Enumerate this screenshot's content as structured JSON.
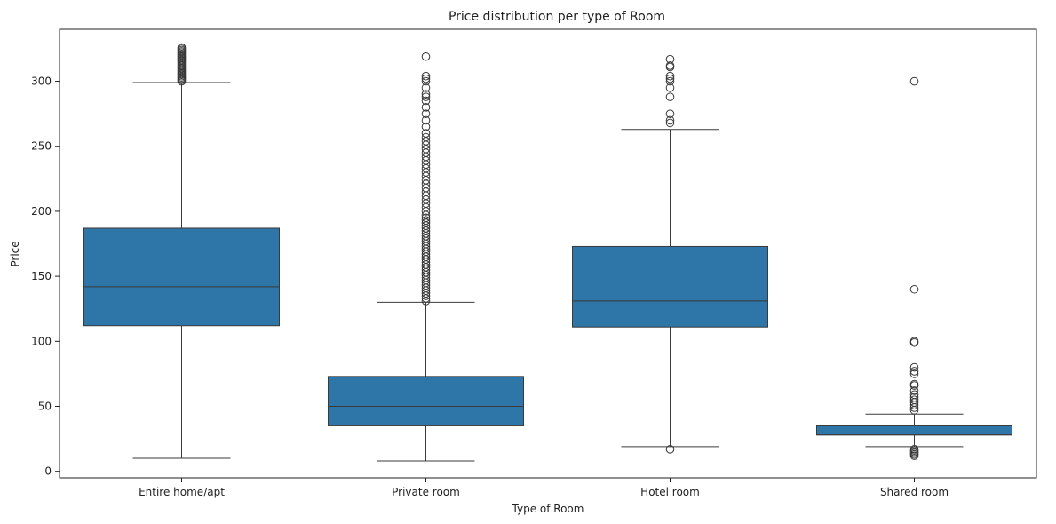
{
  "chart_data": {
    "type": "box",
    "title": "Price distribution per type of Room",
    "xlabel": "Type of Room",
    "ylabel": "Price",
    "ylim": [
      -5,
      340
    ],
    "yticks": [
      0,
      50,
      100,
      150,
      200,
      250,
      300
    ],
    "box_color": "#2e75a8",
    "line_color": "#3a3a3a",
    "grid": false,
    "categories": [
      "Entire home/apt",
      "Private room",
      "Hotel room",
      "Shared room"
    ],
    "boxes": [
      {
        "category": "Entire home/apt",
        "whisker_low": 10,
        "q1": 112,
        "median": 142,
        "q3": 187,
        "whisker_high": 299,
        "outliers": [
          300,
          301,
          302,
          303,
          304,
          305,
          306,
          307,
          308,
          309,
          310,
          311,
          312,
          313,
          314,
          315,
          316,
          317,
          318,
          319,
          320,
          321,
          322,
          323,
          324,
          325,
          326
        ]
      },
      {
        "category": "Private room",
        "whisker_low": 8,
        "q1": 35,
        "median": 50,
        "q3": 73,
        "whisker_high": 130,
        "outliers": [
          131,
          133,
          135,
          137,
          139,
          141,
          143,
          145,
          147,
          149,
          151,
          153,
          155,
          157,
          159,
          161,
          163,
          165,
          167,
          169,
          171,
          173,
          175,
          177,
          179,
          181,
          183,
          185,
          187,
          189,
          191,
          193,
          195,
          197,
          200,
          203,
          206,
          209,
          212,
          215,
          218,
          221,
          224,
          227,
          230,
          233,
          236,
          239,
          242,
          245,
          248,
          251,
          254,
          257,
          260,
          265,
          270,
          275,
          280,
          285,
          288,
          290,
          295,
          300,
          302,
          304,
          319
        ]
      },
      {
        "category": "Hotel room",
        "whisker_low": 19,
        "q1": 111,
        "median": 131,
        "q3": 173,
        "whisker_high": 263,
        "outliers": [
          17,
          268,
          270,
          275,
          288,
          295,
          300,
          302,
          304,
          311,
          312,
          317
        ]
      },
      {
        "category": "Shared room",
        "whisker_low": 19,
        "q1": 28,
        "median": 28,
        "q3": 35,
        "whisker_high": 44,
        "outliers": [
          12,
          13,
          14,
          15,
          16,
          17,
          47,
          49,
          51,
          53,
          55,
          57,
          59,
          62,
          66,
          67,
          75,
          77,
          80,
          99,
          100,
          140,
          300
        ]
      }
    ]
  }
}
